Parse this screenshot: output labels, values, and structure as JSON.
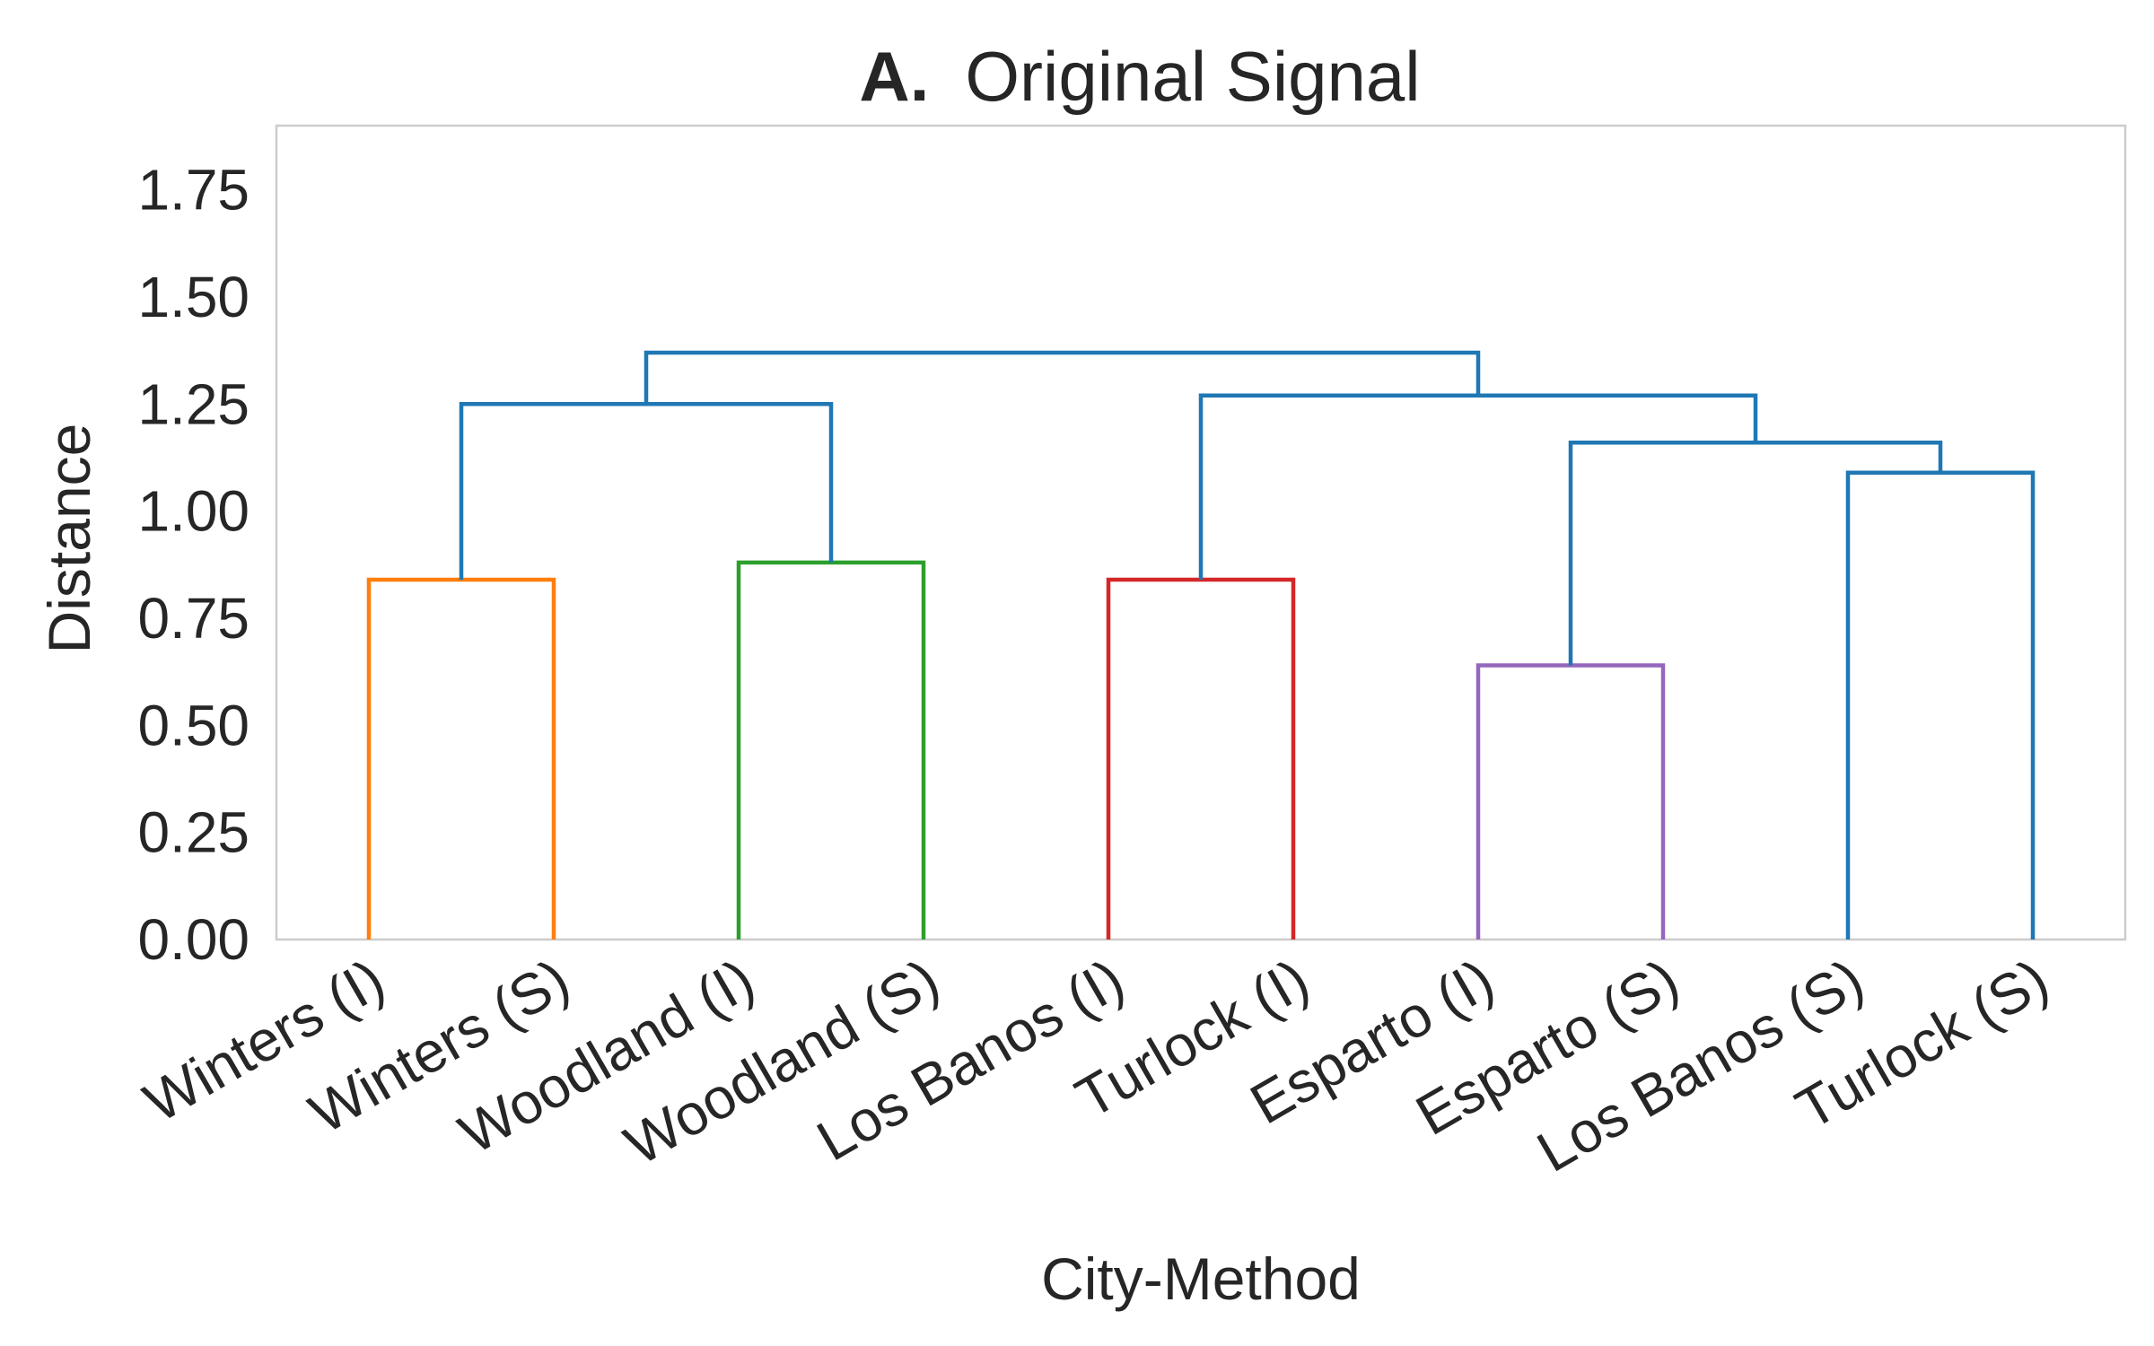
{
  "chart_data": {
    "type": "dendrogram",
    "title_prefix": "A.",
    "title": "Original Signal",
    "xlabel": "City-Method",
    "ylabel": "Distance",
    "ylim": [
      0,
      1.9
    ],
    "yticks": [
      "0.00",
      "0.25",
      "0.50",
      "0.75",
      "1.00",
      "1.25",
      "1.50",
      "1.75"
    ],
    "ytick_values": [
      0,
      0.25,
      0.5,
      0.75,
      1.0,
      1.25,
      1.5,
      1.75
    ],
    "grid": false,
    "leaves": [
      "Winters (I)",
      "Winters (S)",
      "Woodland (I)",
      "Woodland (S)",
      "Los Banos (I)",
      "Turlock (I)",
      "Esparto (I)",
      "Esparto (S)",
      "Los Banos (S)",
      "Turlock (S)"
    ],
    "colors": {
      "orange": "#ff7f0e",
      "green": "#2ca02c",
      "red": "#d62728",
      "purple": "#9467bd",
      "blue": "#1f77b4",
      "frame": "#cccccc",
      "text": "#262626"
    },
    "merges": [
      {
        "name": "winters",
        "left": 0,
        "right": 1,
        "height": 0.84,
        "color": "orange"
      },
      {
        "name": "woodland",
        "left": 2,
        "right": 3,
        "height": 0.88,
        "color": "green"
      },
      {
        "name": "losbanos-turlock-i",
        "left": 4,
        "right": 5,
        "height": 0.84,
        "color": "red"
      },
      {
        "name": "esparto",
        "left": 6,
        "right": 7,
        "height": 0.64,
        "color": "purple"
      },
      {
        "name": "losbanos-turlock-s",
        "left": 8,
        "right": 9,
        "height": 1.09,
        "color": "blue"
      },
      {
        "name": "west-cities",
        "left": "winters",
        "right": "woodland",
        "height": 1.25,
        "color": "blue"
      },
      {
        "name": "esparto-s-group",
        "left": "esparto",
        "right": "losbanos-turlock-s",
        "height": 1.16,
        "color": "blue"
      },
      {
        "name": "south-cities",
        "left": "losbanos-turlock-i",
        "right": "esparto-s-group",
        "height": 1.27,
        "color": "blue"
      },
      {
        "name": "root",
        "left": "west-cities",
        "right": "south-cities",
        "height": 1.37,
        "color": "blue"
      }
    ]
  }
}
